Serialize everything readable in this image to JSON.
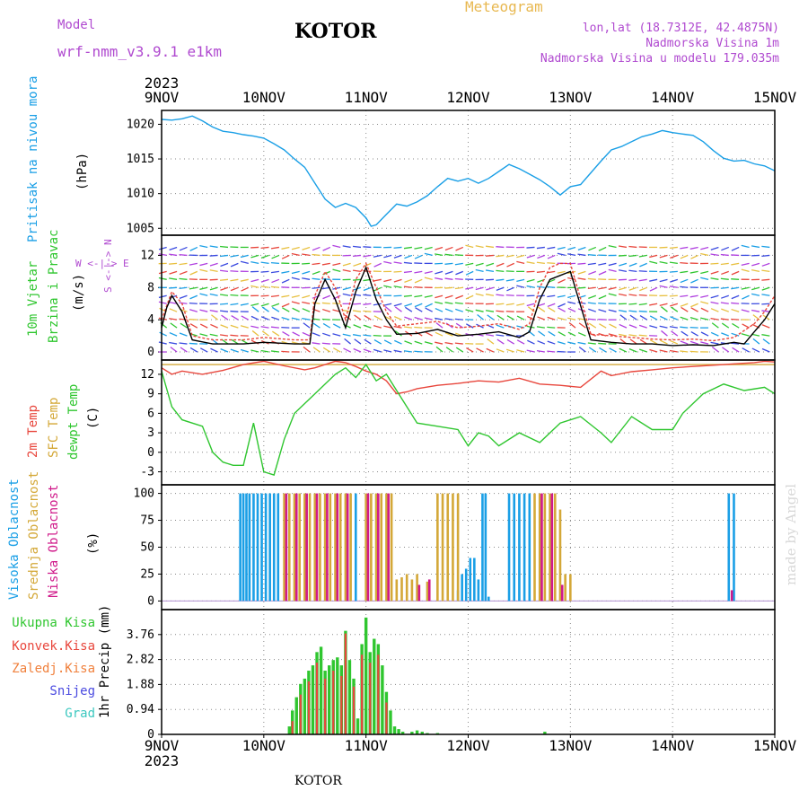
{
  "header": {
    "title": "KOTOR",
    "model_label": "Model",
    "model_name": "wrf-nmm_v3.9.1 e1km",
    "meteogram": "Meteogram",
    "lonlat": "lon,lat (18.7312E, 42.4875N)",
    "altitude": "Nadmorska Visina 1m",
    "model_altitude": "Nadmorska Visina u modelu 179.035m",
    "bottom_title": "KOTOR",
    "credit": "made by Angel",
    "year_top": "2023",
    "year_bottom": "2023"
  },
  "colors": {
    "pressure": "#1a9fe6",
    "temp2m": "#e8463c",
    "sfc": "#d4a838",
    "dewpt": "#2fc62f",
    "wind_speed": "#000000",
    "wind_gust": "#e8463c",
    "high_cloud": "#1a9fe6",
    "mid_cloud": "#d4a838",
    "low_cloud": "#d01a8a",
    "total_precip": "#2fc62f",
    "conv_precip": "#e8463c",
    "model_text": "#b04ad0",
    "meteogram_text": "#e8b850"
  },
  "axis_labels": {
    "pressure": [
      "Pritisak na nivou mora",
      "(hPa)"
    ],
    "wind": [
      "10m Vjetar",
      "Brzina i Pravac",
      "(m/s)"
    ],
    "compass": [
      "W <-|-> E",
      "S <-|-> N"
    ],
    "temp": [
      "2m Temp",
      "SFC Temp",
      "dewpt Temp",
      "(C)"
    ],
    "cloud": [
      "Visoka Oblacnost",
      "Srednja Oblacnost",
      "Niska Oblacnost",
      "(%)"
    ],
    "precip_legend": [
      "Ukupna Kisa",
      "Konvek.Kisa",
      "Zaledj.Kisa",
      "Snijeg",
      "Grad"
    ],
    "precip_axis": "1hr Precip (mm)"
  },
  "chart_data": [
    {
      "type": "line",
      "name": "pressure",
      "xlabel": "",
      "ylabel": "(hPa)",
      "x_unit": "days since 9NOV 00Z",
      "x_ticks": [
        "9NOV",
        "10NOV",
        "11NOV",
        "12NOV",
        "13NOV",
        "14NOV",
        "15NOV"
      ],
      "xlim": [
        0,
        6
      ],
      "ylim": [
        1004,
        1022
      ],
      "yticks": [
        1005,
        1010,
        1015,
        1020
      ],
      "grid": true,
      "series": [
        {
          "x": [
            0,
            0.1,
            0.2,
            0.3,
            0.4,
            0.5,
            0.6,
            0.7,
            0.8,
            0.9,
            1.0,
            1.1,
            1.2,
            1.3,
            1.4,
            1.5,
            1.6,
            1.7,
            1.8,
            1.9,
            2.0,
            2.05,
            2.1,
            2.2,
            2.3,
            2.4,
            2.5,
            2.6,
            2.7,
            2.8,
            2.9,
            3.0,
            3.1,
            3.2,
            3.3,
            3.4,
            3.5,
            3.6,
            3.7,
            3.8,
            3.9,
            4.0,
            4.1,
            4.2,
            4.3,
            4.4,
            4.5,
            4.6,
            4.7,
            4.8,
            4.9,
            5.0,
            5.1,
            5.2,
            5.3,
            5.4,
            5.5,
            5.6,
            5.7,
            5.8,
            5.9,
            6.0
          ],
          "values": [
            1020.7,
            1020.6,
            1020.8,
            1021.2,
            1020.5,
            1019.6,
            1019.0,
            1018.8,
            1018.5,
            1018.3,
            1018.0,
            1017.2,
            1016.3,
            1015.0,
            1013.8,
            1011.5,
            1009.2,
            1008.0,
            1008.6,
            1008.0,
            1006.5,
            1005.3,
            1005.5,
            1007.0,
            1008.5,
            1008.2,
            1008.8,
            1009.7,
            1011.0,
            1012.2,
            1011.8,
            1012.2,
            1011.5,
            1012.2,
            1013.2,
            1014.2,
            1013.6,
            1012.8,
            1012.0,
            1011.0,
            1009.8,
            1011.0,
            1011.3,
            1013.0,
            1014.7,
            1016.3,
            1016.8,
            1017.5,
            1018.2,
            1018.6,
            1019.1,
            1018.8,
            1018.6,
            1018.4,
            1017.5,
            1016.2,
            1015.1,
            1014.7,
            1014.8,
            1014.3,
            1014.0,
            1013.3
          ]
        }
      ]
    },
    {
      "type": "line",
      "name": "wind",
      "ylabel": "(m/s)",
      "xlim": [
        0,
        6
      ],
      "ylim": [
        -1,
        14.5
      ],
      "yticks": [
        0,
        4,
        8,
        12
      ],
      "grid": true,
      "series": [
        {
          "name": "speed",
          "x": [
            0,
            0.05,
            0.1,
            0.2,
            0.3,
            0.5,
            0.8,
            1.0,
            1.3,
            1.45,
            1.5,
            1.6,
            1.7,
            1.8,
            1.9,
            2.0,
            2.1,
            2.2,
            2.3,
            2.5,
            2.7,
            2.9,
            3.1,
            3.3,
            3.5,
            3.6,
            3.7,
            3.8,
            3.9,
            4.0,
            4.2,
            4.4,
            4.6,
            4.8,
            5.0,
            5.2,
            5.4,
            5.6,
            5.7,
            5.8,
            5.9,
            6.0
          ],
          "values": [
            3.0,
            5.5,
            7.0,
            5.0,
            1.5,
            1.0,
            1.0,
            1.2,
            1.0,
            1.0,
            6.0,
            9.0,
            6.5,
            3.0,
            7.5,
            10.5,
            6.5,
            4.0,
            2.2,
            2.3,
            2.8,
            2.0,
            2.2,
            2.5,
            1.8,
            2.5,
            6.5,
            9.0,
            9.5,
            10.0,
            1.5,
            1.2,
            1.0,
            1.0,
            0.8,
            0.9,
            0.8,
            1.2,
            1.0,
            2.5,
            4.0,
            6.0
          ]
        },
        {
          "name": "gust",
          "x": [
            0,
            0.1,
            0.2,
            0.3,
            0.5,
            0.8,
            1.0,
            1.3,
            1.45,
            1.5,
            1.6,
            1.7,
            1.8,
            1.9,
            2.0,
            2.1,
            2.2,
            2.3,
            2.5,
            2.7,
            2.9,
            3.1,
            3.3,
            3.5,
            3.6,
            3.7,
            3.8,
            3.9,
            4.0,
            4.2,
            4.4,
            4.6,
            4.8,
            5.0,
            5.2,
            5.4,
            5.6,
            5.8,
            5.9,
            6.0
          ],
          "values": [
            4.0,
            7.5,
            6.0,
            2.0,
            1.5,
            1.5,
            1.8,
            1.5,
            1.5,
            7.0,
            10.0,
            8.0,
            4.0,
            9.0,
            11.0,
            8.0,
            5.0,
            3.2,
            3.5,
            3.8,
            3.0,
            3.2,
            3.5,
            2.8,
            3.5,
            8.0,
            10.5,
            11.0,
            11.0,
            2.2,
            2.0,
            1.8,
            1.6,
            1.5,
            1.6,
            1.4,
            1.8,
            3.5,
            5.0,
            7.0
          ]
        }
      ]
    },
    {
      "type": "line",
      "name": "temperature",
      "ylabel": "(C)",
      "xlim": [
        0,
        6
      ],
      "ylim": [
        -5,
        14.2
      ],
      "yticks": [
        -3,
        0,
        3,
        6,
        9,
        12
      ],
      "grid": true,
      "series": [
        {
          "name": "2m",
          "x": [
            0,
            0.1,
            0.2,
            0.4,
            0.6,
            0.8,
            1.0,
            1.2,
            1.4,
            1.5,
            1.6,
            1.7,
            1.8,
            1.9,
            2.0,
            2.1,
            2.2,
            2.3,
            2.4,
            2.5,
            2.7,
            2.9,
            3.1,
            3.3,
            3.5,
            3.7,
            3.9,
            4.1,
            4.3,
            4.4,
            4.6,
            4.8,
            5.0,
            5.2,
            5.4,
            5.6,
            5.8,
            5.9,
            6.0
          ],
          "values": [
            13.0,
            12.0,
            12.5,
            12.0,
            12.6,
            13.5,
            14.0,
            13.3,
            12.7,
            13.0,
            13.5,
            14.0,
            13.8,
            13.2,
            12.5,
            12.0,
            11.0,
            9.0,
            9.3,
            9.8,
            10.3,
            10.6,
            11.0,
            10.8,
            11.4,
            10.5,
            10.3,
            10.0,
            12.5,
            11.8,
            12.4,
            12.7,
            13.0,
            13.2,
            13.4,
            13.6,
            13.8,
            14.0,
            13.9
          ]
        },
        {
          "name": "sfc",
          "x": [
            0,
            6
          ],
          "values": [
            13.5,
            13.5
          ]
        },
        {
          "name": "dewpt",
          "x": [
            0,
            0.1,
            0.2,
            0.4,
            0.5,
            0.6,
            0.7,
            0.8,
            0.9,
            1.0,
            1.1,
            1.2,
            1.3,
            1.5,
            1.7,
            1.8,
            1.9,
            2.0,
            2.1,
            2.2,
            2.3,
            2.5,
            2.7,
            2.9,
            3.0,
            3.1,
            3.2,
            3.3,
            3.5,
            3.7,
            3.9,
            4.1,
            4.3,
            4.4,
            4.6,
            4.8,
            5.0,
            5.1,
            5.3,
            5.5,
            5.7,
            5.9,
            6.0
          ],
          "values": [
            12.5,
            7.0,
            5.0,
            4.0,
            0.0,
            -1.5,
            -2.0,
            -2.0,
            4.5,
            -3.0,
            -3.5,
            2.0,
            6.0,
            9.0,
            12.0,
            13.0,
            11.5,
            13.5,
            11.0,
            12.0,
            9.5,
            4.5,
            4.0,
            3.5,
            1.0,
            3.0,
            2.5,
            1.0,
            3.0,
            1.5,
            4.5,
            5.5,
            3.0,
            1.5,
            5.5,
            3.5,
            3.5,
            6.0,
            9.0,
            10.5,
            9.5,
            10.0,
            9.0
          ]
        }
      ]
    },
    {
      "type": "bar",
      "name": "cloud_cover",
      "ylabel": "(%)",
      "xlim": [
        0,
        6
      ],
      "ylim": [
        -8,
        108
      ],
      "yticks": [
        0,
        25,
        50,
        75,
        100
      ],
      "grid": true,
      "series": [
        {
          "name": "high",
          "x": [
            0.77,
            0.8,
            0.83,
            0.86,
            0.9,
            0.94,
            0.98,
            1.02,
            1.06,
            1.1,
            1.14,
            1.9,
            2.9,
            2.94,
            2.98,
            3.02,
            3.06,
            3.1,
            3.14,
            3.17,
            3.2,
            3.4,
            3.45,
            3.5,
            3.55,
            3.6,
            5.55,
            5.6
          ],
          "values": [
            100,
            100,
            100,
            100,
            100,
            100,
            100,
            100,
            100,
            100,
            100,
            100,
            10,
            25,
            30,
            40,
            40,
            20,
            100,
            100,
            4,
            100,
            100,
            100,
            100,
            100,
            100,
            100
          ]
        },
        {
          "name": "mid",
          "x": [
            1.2,
            1.25,
            1.3,
            1.35,
            1.4,
            1.45,
            1.5,
            1.55,
            1.6,
            1.65,
            1.7,
            1.75,
            1.8,
            1.85,
            2.0,
            2.05,
            2.1,
            2.15,
            2.2,
            2.25,
            2.3,
            2.35,
            2.4,
            2.45,
            2.5,
            2.6,
            2.7,
            2.75,
            2.8,
            2.85,
            2.9,
            3.65,
            3.7,
            3.75,
            3.8,
            3.85,
            3.9,
            3.95,
            4.0
          ],
          "values": [
            100,
            100,
            100,
            100,
            100,
            100,
            100,
            100,
            100,
            100,
            100,
            100,
            100,
            100,
            100,
            100,
            100,
            100,
            100,
            100,
            20,
            22,
            25,
            20,
            25,
            18,
            100,
            100,
            100,
            100,
            100,
            100,
            100,
            100,
            100,
            100,
            85,
            25,
            25
          ]
        },
        {
          "name": "low",
          "x": [
            1.22,
            1.32,
            1.42,
            1.52,
            1.62,
            1.72,
            1.82,
            2.02,
            2.12,
            2.22,
            2.52,
            2.62,
            3.72,
            3.82,
            3.92,
            5.58
          ],
          "values": [
            100,
            100,
            100,
            100,
            100,
            100,
            100,
            100,
            100,
            100,
            15,
            20,
            100,
            100,
            15,
            10
          ]
        }
      ]
    },
    {
      "type": "bar",
      "name": "precipitation",
      "ylabel": "1hr Precip (mm)",
      "xlim": [
        0,
        6
      ],
      "ylim": [
        0,
        4.7
      ],
      "yticks": [
        0,
        0.94,
        1.88,
        2.82,
        3.76
      ],
      "ytick_labels": [
        "0",
        "0.94",
        "1.88",
        "2.82",
        "3.76"
      ],
      "grid": true,
      "series": [
        {
          "name": "total",
          "x": [
            1.25,
            1.28,
            1.32,
            1.36,
            1.4,
            1.44,
            1.48,
            1.52,
            1.56,
            1.6,
            1.64,
            1.68,
            1.72,
            1.76,
            1.8,
            1.84,
            1.88,
            1.92,
            1.96,
            2.0,
            2.04,
            2.08,
            2.12,
            2.16,
            2.2,
            2.24,
            2.28,
            2.32,
            2.36,
            2.45,
            2.5,
            2.55,
            2.6,
            2.7,
            3.75
          ],
          "values": [
            0.3,
            0.9,
            1.4,
            1.9,
            2.1,
            2.4,
            2.6,
            3.1,
            3.3,
            2.4,
            2.6,
            2.8,
            2.9,
            2.6,
            3.9,
            2.8,
            2.1,
            0.6,
            3.4,
            4.4,
            3.1,
            3.6,
            3.4,
            2.6,
            1.6,
            0.9,
            0.3,
            0.2,
            0.1,
            0.1,
            0.15,
            0.1,
            0.05,
            0.05,
            0.1
          ]
        },
        {
          "name": "convective",
          "x": [
            1.28,
            1.36,
            1.44,
            1.52,
            1.6,
            1.68,
            1.76,
            1.8,
            1.88,
            1.96,
            2.04,
            2.12,
            2.2
          ],
          "values": [
            0.5,
            1.5,
            2.0,
            2.7,
            2.1,
            2.4,
            2.2,
            3.8,
            1.8,
            3.0,
            2.7,
            3.0,
            1.2
          ]
        }
      ]
    }
  ]
}
